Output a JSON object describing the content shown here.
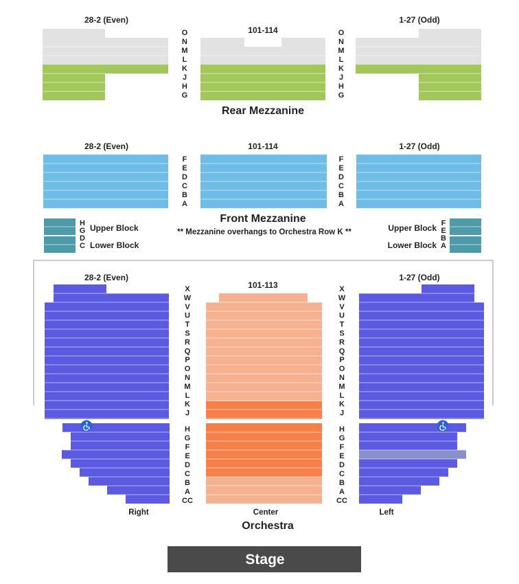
{
  "colors": {
    "rear_mezz_grey": "#e2e2e2",
    "rear_mezz_green": "#a3c85a",
    "front_mezz_blue": "#6fbde6",
    "box_teal": "#4e9aaa",
    "orch_side_purple": "#5c5ae0",
    "orch_center_light": "#f6b190",
    "orch_center_dark": "#f6804a",
    "wheelchair_blue": "#2a63d8",
    "stage_grey": "#4a4a4a",
    "outline": "#9a9a9a"
  },
  "rear_mezzanine": {
    "title": "Rear Mezzanine",
    "left_label": "28-2 (Even)",
    "center_label": "101-114",
    "right_label": "1-27 (Odd)",
    "rows": [
      "O",
      "N",
      "M",
      "L",
      "K",
      "J",
      "H",
      "G"
    ]
  },
  "front_mezzanine": {
    "title": "Front Mezzanine",
    "left_label": "28-2 (Even)",
    "center_label": "101-114",
    "right_label": "1-27 (Odd)",
    "rows": [
      "F",
      "E",
      "D",
      "C",
      "B",
      "A"
    ],
    "note": "** Mezzanine overhangs to Orchestra Row K **",
    "left_box_rows": [
      "H",
      "G",
      "D",
      "C"
    ],
    "right_box_rows": [
      "F",
      "E",
      "B",
      "A"
    ],
    "upper_block": "Upper Block",
    "lower_block": "Lower Block"
  },
  "orchestra": {
    "title": "Orchestra",
    "left_label": "28-2 (Even)",
    "center_label": "101-113",
    "right_label": "1-27 (Odd)",
    "upper_rows": [
      "X",
      "W",
      "V",
      "U",
      "T",
      "S",
      "R",
      "Q",
      "P",
      "O",
      "N",
      "M",
      "L",
      "K",
      "J"
    ],
    "lower_rows": [
      "H",
      "G",
      "F",
      "E",
      "D",
      "C",
      "B",
      "A",
      "CC"
    ],
    "side_right": "Right",
    "side_center": "Center",
    "side_left": "Left"
  },
  "stage": {
    "label": "Stage"
  },
  "icons": {
    "accessibility": "wheelchair-icon"
  }
}
